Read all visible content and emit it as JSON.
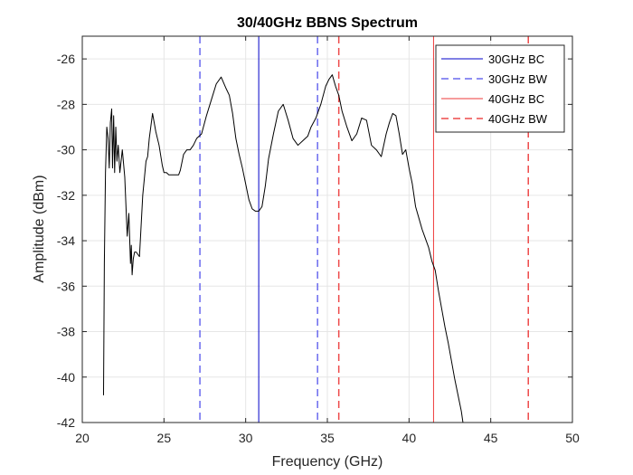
{
  "chart_data": {
    "type": "line",
    "title": "30/40GHz BBNS Spectrum",
    "xlabel": "Frequency (GHz)",
    "ylabel": "Amplitude (dBm)",
    "xlim": [
      20,
      50
    ],
    "ylim": [
      -42,
      -25
    ],
    "xticks": [
      20,
      25,
      30,
      35,
      40,
      45,
      50
    ],
    "yticks": [
      -42,
      -40,
      -38,
      -36,
      -34,
      -32,
      -30,
      -28,
      -26
    ],
    "grid": true,
    "legend_position": "top-right",
    "colors": {
      "spectrum": "#000000",
      "bc30": "#0000c8",
      "bw30": "#6a6aee",
      "bc40": "#ee3a3a",
      "bw40": "#ee4a4a"
    },
    "series": [
      {
        "kind": "spectrum",
        "x": [
          21.3,
          21.35,
          21.42,
          21.5,
          21.58,
          21.65,
          21.72,
          21.8,
          21.85,
          21.92,
          21.98,
          22.05,
          22.12,
          22.2,
          22.3,
          22.45,
          22.6,
          22.75,
          22.85,
          22.95,
          23.0,
          23.05,
          23.12,
          23.2,
          23.3,
          23.5,
          23.7,
          23.9,
          24.0,
          24.1,
          24.3,
          24.5,
          24.7,
          24.9,
          25.0,
          25.15,
          25.3,
          25.5,
          25.7,
          25.9,
          26.0,
          26.2,
          26.4,
          26.6,
          26.8,
          27.0,
          27.3,
          27.6,
          27.9,
          28.2,
          28.5,
          28.8,
          29.0,
          29.2,
          29.4,
          29.6,
          29.8,
          30.0,
          30.2,
          30.4,
          30.6,
          30.8,
          31.0,
          31.2,
          31.4,
          31.7,
          32.0,
          32.3,
          32.6,
          32.9,
          33.2,
          33.5,
          33.8,
          34.0,
          34.3,
          34.6,
          34.9,
          35.1,
          35.3,
          35.5,
          35.7,
          35.9,
          36.2,
          36.5,
          36.8,
          37.1,
          37.4,
          37.7,
          38.0,
          38.3,
          38.6,
          38.8,
          39.0,
          39.2,
          39.4,
          39.6,
          39.8,
          40.0,
          40.2,
          40.4,
          40.6,
          40.8,
          41.0,
          41.2,
          41.4,
          41.6,
          41.8,
          42.0,
          42.2,
          42.4,
          42.6,
          42.8,
          43.0,
          43.2,
          43.3
        ],
        "y": [
          -40.8,
          -35.0,
          -31.0,
          -29.0,
          -29.5,
          -30.8,
          -28.8,
          -28.2,
          -30.8,
          -28.5,
          -31.0,
          -29.0,
          -30.5,
          -29.8,
          -31.0,
          -30.0,
          -31.2,
          -33.8,
          -32.8,
          -35.0,
          -34.2,
          -35.5,
          -34.8,
          -34.5,
          -34.5,
          -34.7,
          -32.0,
          -30.5,
          -30.3,
          -29.5,
          -28.4,
          -29.2,
          -29.8,
          -30.7,
          -31.0,
          -31.0,
          -31.1,
          -31.1,
          -31.1,
          -31.1,
          -30.9,
          -30.2,
          -30.0,
          -30.0,
          -29.8,
          -29.5,
          -29.3,
          -28.5,
          -27.8,
          -27.1,
          -26.8,
          -27.3,
          -27.6,
          -28.4,
          -29.5,
          -30.2,
          -30.8,
          -31.5,
          -32.2,
          -32.6,
          -32.7,
          -32.7,
          -32.5,
          -31.6,
          -30.4,
          -29.3,
          -28.3,
          -28.0,
          -28.7,
          -29.5,
          -29.8,
          -29.6,
          -29.4,
          -29.0,
          -28.6,
          -28.0,
          -27.2,
          -26.9,
          -26.7,
          -27.2,
          -27.6,
          -28.3,
          -29.0,
          -29.6,
          -29.3,
          -28.6,
          -28.7,
          -29.8,
          -30.0,
          -30.3,
          -29.3,
          -28.8,
          -28.4,
          -28.5,
          -29.3,
          -30.2,
          -30.0,
          -30.8,
          -31.5,
          -32.5,
          -33.0,
          -33.5,
          -33.9,
          -34.3,
          -34.9,
          -35.3,
          -36.2,
          -37.0,
          -37.8,
          -38.5,
          -39.3,
          -40.1,
          -40.8,
          -41.5,
          -42.0
        ]
      },
      {
        "kind": "vline",
        "name": "30GHz BC",
        "x": 30.8,
        "color": "#0000c8",
        "dash": "solid",
        "lw": 1
      },
      {
        "kind": "vline",
        "name": "30GHz BW",
        "x": 27.2,
        "color": "#6a6aee",
        "dash": "dashed",
        "lw": 1.5,
        "legend": true
      },
      {
        "kind": "vline",
        "name": "30GHz BW",
        "x": 34.4,
        "color": "#6a6aee",
        "dash": "dashed",
        "lw": 1.5,
        "legend": false
      },
      {
        "kind": "vline",
        "name": "40GHz BC",
        "x": 41.5,
        "color": "#ee3a3a",
        "dash": "solid",
        "lw": 1
      },
      {
        "kind": "vline",
        "name": "40GHz BW",
        "x": 35.7,
        "color": "#ee4a4a",
        "dash": "dashed",
        "lw": 1.5,
        "legend": true
      },
      {
        "kind": "vline",
        "name": "40GHz BW",
        "x": 47.3,
        "color": "#ee4a4a",
        "dash": "dashed",
        "lw": 1.5,
        "legend": false
      }
    ],
    "legend": [
      {
        "label": "30GHz BC",
        "color": "#0000c8",
        "dash": "solid"
      },
      {
        "label": "30GHz BW",
        "color": "#6a6aee",
        "dash": "dashed"
      },
      {
        "label": "40GHz BC",
        "color": "#ee3a3a",
        "dash": "solid"
      },
      {
        "label": "40GHz BW",
        "color": "#ee4a4a",
        "dash": "dashed"
      }
    ]
  }
}
